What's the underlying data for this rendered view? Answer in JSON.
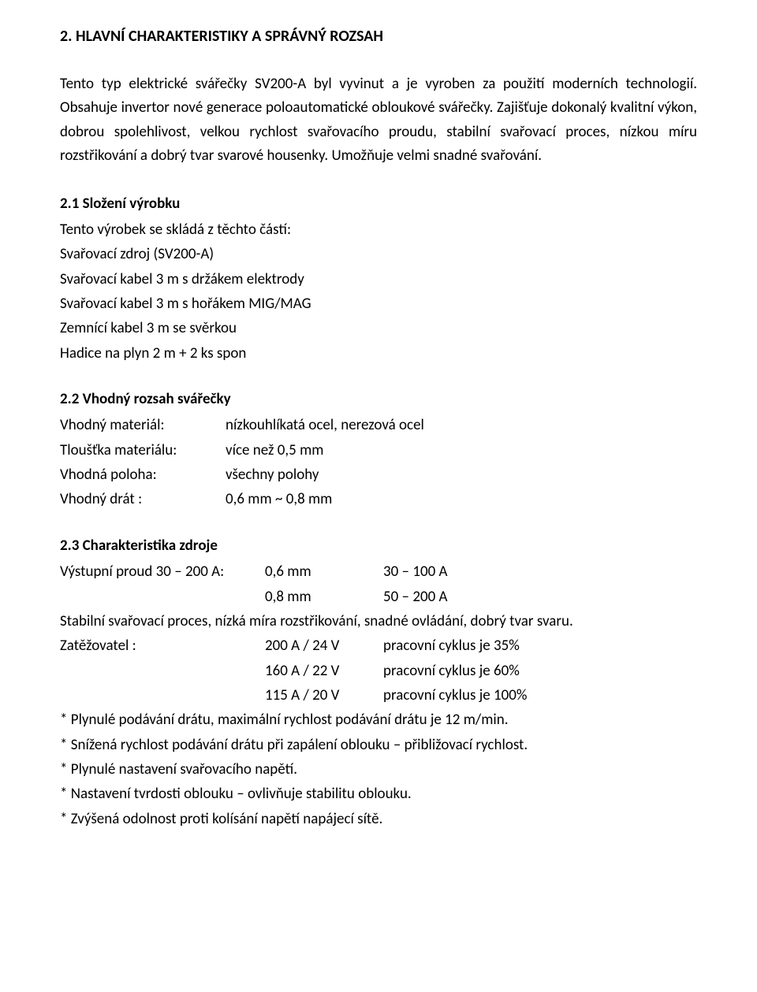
{
  "section": {
    "title": "2. HLAVNÍ CHARAKTERISTIKY A SPRÁVNÝ ROZSAH",
    "intro": "Tento typ elektrické svářečky SV200-A byl vyvinut a je vyroben za použití moderních technologií. Obsahuje invertor nové generace poloautomatické obloukové svářečky. Zajišťuje dokonalý kvalitní výkon, dobrou spolehlivost, velkou rychlost svařovacího proudu, stabilní svařovací proces, nízkou míru rozstřikování a dobrý tvar svarové housenky. Umožňuje velmi snadné svařování."
  },
  "s21": {
    "title": "2.1 Složení výrobku",
    "lead": "Tento výrobek se skládá z těchto částí:",
    "items": [
      "Svařovací zdroj (SV200-A)",
      "Svařovací kabel 3 m s držákem elektrody",
      "Svařovací kabel 3 m s hořákem MIG/MAG",
      "Zemnící kabel 3 m se svěrkou",
      "Hadice na plyn 2 m + 2 ks spon"
    ]
  },
  "s22": {
    "title": "2.2 Vhodný rozsah svářečky",
    "rows": [
      {
        "k": "Vhodný materiál:",
        "v": "nízkouhlíkatá ocel, nerezová ocel"
      },
      {
        "k": "Tloušťka materiálu:",
        "v": "více než 0,5 mm"
      },
      {
        "k": "Vhodná poloha:",
        "v": "všechny polohy"
      },
      {
        "k": "Vhodný drát :",
        "v": "0,6 mm ~ 0,8 mm"
      }
    ]
  },
  "s23": {
    "title": "2.3 Charakteristika zdroje",
    "out_rows": [
      {
        "a": "Výstupní proud 30 – 200 A:",
        "b": "0,6 mm",
        "c": "30 – 100 A"
      },
      {
        "a": "",
        "b": "0,8 mm",
        "c": "50 – 200 A"
      }
    ],
    "line1": "Stabilní svařovací proces, nízká míra rozstřikování, snadné ovládání, dobrý tvar svaru.",
    "load_rows": [
      {
        "a": "Zatěžovatel :",
        "b": "200 A / 24 V",
        "c": "pracovní cyklus je 35%"
      },
      {
        "a": "",
        "b": "160 A / 22 V",
        "c": "pracovní cyklus je 60%"
      },
      {
        "a": "",
        "b": "115 A / 20 V",
        "c": "pracovní cyklus je 100%"
      }
    ],
    "bullets": [
      "* Plynulé podávání drátu, maximální rychlost podávání drátu je 12 m/min.",
      "* Snížená rychlost podávání drátu při zapálení oblouku – přibližovací rychlost.",
      "* Plynulé nastavení svařovacího napětí.",
      "* Nastavení tvrdosti oblouku – ovlivňuje stabilitu oblouku.",
      "* Zvýšená odolnost proti kolísání napětí napájecí sítě."
    ]
  }
}
